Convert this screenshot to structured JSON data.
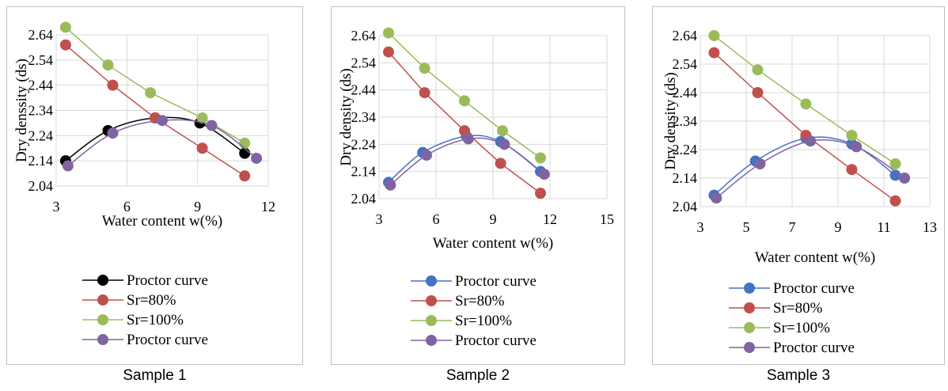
{
  "colors": {
    "proctor_black": "#000000",
    "proctor_blue": "#4472c4",
    "sr80": "#c0504d",
    "sr100": "#9bbb59",
    "proctor_purple": "#8064a2",
    "grid": "#d9d9d9"
  },
  "chart_data": [
    {
      "type": "line",
      "caption": "Sample 1",
      "xlabel": "Water content w(%)",
      "ylabel": "Dry denssity (ds)",
      "xlim": [
        3,
        12
      ],
      "xticks": [
        "3",
        "6",
        "9",
        "12"
      ],
      "ylim": [
        2.04,
        2.64
      ],
      "yticks": [
        "2.04",
        "2.14",
        "2.24",
        "2.34",
        "2.44",
        "2.54",
        "2.64"
      ],
      "grid": true,
      "legend_position": "bottom",
      "series": [
        {
          "name": "Proctor curve",
          "color": "#000000",
          "smooth": true,
          "points": [
            [
              3.4,
              2.14
            ],
            [
              5.2,
              2.26
            ],
            [
              7.2,
              2.31
            ],
            [
              9.1,
              2.29
            ],
            [
              11.0,
              2.17
            ]
          ]
        },
        {
          "name": "Sr=80%",
          "color": "#c0504d",
          "smooth": false,
          "points": [
            [
              3.4,
              2.6
            ],
            [
              5.4,
              2.44
            ],
            [
              7.2,
              2.31
            ],
            [
              9.2,
              2.19
            ],
            [
              11.0,
              2.08
            ]
          ]
        },
        {
          "name": "Sr=100%",
          "color": "#9bbb59",
          "smooth": false,
          "points": [
            [
              3.4,
              2.67
            ],
            [
              5.2,
              2.52
            ],
            [
              7.0,
              2.41
            ],
            [
              9.2,
              2.31
            ],
            [
              11.0,
              2.21
            ]
          ]
        },
        {
          "name": "Proctor curve",
          "color": "#8064a2",
          "smooth": true,
          "points": [
            [
              3.5,
              2.12
            ],
            [
              5.4,
              2.25
            ],
            [
              7.5,
              2.3
            ],
            [
              9.6,
              2.28
            ],
            [
              11.5,
              2.15
            ]
          ]
        }
      ]
    },
    {
      "type": "line",
      "caption": "Sample 2",
      "xlabel": "Water content w(%)",
      "ylabel": "Dry density (ds)",
      "xlim": [
        3,
        15
      ],
      "xticks": [
        "3",
        "6",
        "9",
        "12",
        "15"
      ],
      "ylim": [
        2.04,
        2.64
      ],
      "yticks": [
        "2.04",
        "2.14",
        "2.24",
        "2.34",
        "2.44",
        "2.54",
        "2.64"
      ],
      "grid": true,
      "legend_position": "bottom",
      "series": [
        {
          "name": "Proctor curve",
          "color": "#4472c4",
          "smooth": true,
          "points": [
            [
              3.5,
              2.1
            ],
            [
              5.3,
              2.21
            ],
            [
              7.6,
              2.27
            ],
            [
              9.4,
              2.25
            ],
            [
              11.5,
              2.14
            ]
          ]
        },
        {
          "name": "Sr=80%",
          "color": "#c0504d",
          "smooth": false,
          "points": [
            [
              3.5,
              2.58
            ],
            [
              5.4,
              2.43
            ],
            [
              7.5,
              2.29
            ],
            [
              9.4,
              2.17
            ],
            [
              11.5,
              2.06
            ]
          ]
        },
        {
          "name": "Sr=100%",
          "color": "#9bbb59",
          "smooth": false,
          "points": [
            [
              3.5,
              2.65
            ],
            [
              5.4,
              2.52
            ],
            [
              7.5,
              2.4
            ],
            [
              9.5,
              2.29
            ],
            [
              11.5,
              2.19
            ]
          ]
        },
        {
          "name": "Proctor curve",
          "color": "#8064a2",
          "smooth": true,
          "points": [
            [
              3.6,
              2.09
            ],
            [
              5.5,
              2.2
            ],
            [
              7.7,
              2.26
            ],
            [
              9.6,
              2.24
            ],
            [
              11.7,
              2.13
            ]
          ]
        }
      ]
    },
    {
      "type": "line",
      "caption": "Sample 3",
      "xlabel": "Water content w(%)",
      "ylabel": "Dry density (ds)",
      "xlim": [
        3,
        13
      ],
      "xticks": [
        "3",
        "5",
        "7",
        "9",
        "11",
        "13"
      ],
      "ylim": [
        2.04,
        2.64
      ],
      "yticks": [
        "2.04",
        "2.14",
        "2.24",
        "2.34",
        "2.44",
        "2.54",
        "2.64"
      ],
      "grid": true,
      "legend_position": "bottom",
      "series": [
        {
          "name": "Proctor curve",
          "color": "#4472c4",
          "smooth": true,
          "points": [
            [
              3.6,
              2.08
            ],
            [
              5.4,
              2.2
            ],
            [
              7.6,
              2.28
            ],
            [
              9.6,
              2.26
            ],
            [
              11.5,
              2.15
            ]
          ]
        },
        {
          "name": "Sr=80%",
          "color": "#c0504d",
          "smooth": false,
          "points": [
            [
              3.6,
              2.58
            ],
            [
              5.5,
              2.44
            ],
            [
              7.6,
              2.29
            ],
            [
              9.6,
              2.17
            ],
            [
              11.5,
              2.06
            ]
          ]
        },
        {
          "name": "Sr=100%",
          "color": "#9bbb59",
          "smooth": false,
          "points": [
            [
              3.6,
              2.64
            ],
            [
              5.5,
              2.52
            ],
            [
              7.6,
              2.4
            ],
            [
              9.6,
              2.29
            ],
            [
              11.5,
              2.19
            ]
          ]
        },
        {
          "name": "Proctor curve",
          "color": "#8064a2",
          "smooth": true,
          "points": [
            [
              3.7,
              2.07
            ],
            [
              5.6,
              2.19
            ],
            [
              7.8,
              2.27
            ],
            [
              9.8,
              2.25
            ],
            [
              11.9,
              2.14
            ]
          ]
        }
      ]
    }
  ]
}
